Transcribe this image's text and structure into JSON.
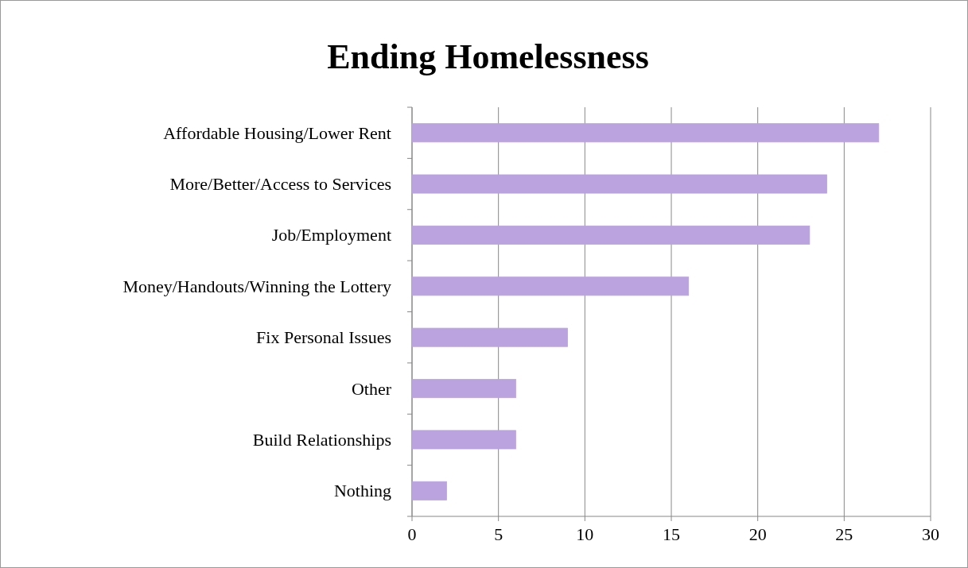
{
  "chart_data": {
    "type": "bar",
    "orientation": "horizontal",
    "title": "Ending Homelessness",
    "categories": [
      "Affordable Housing/Lower Rent",
      "More/Better/Access to Services",
      "Job/Employment",
      "Money/Handouts/Winning the Lottery",
      "Fix Personal Issues",
      "Other",
      "Build Relationships",
      "Nothing"
    ],
    "values": [
      27,
      24,
      23,
      16,
      9,
      6,
      6,
      2
    ],
    "color": "#bba3e0",
    "xlim": [
      0,
      30
    ],
    "xticks": [
      0,
      5,
      10,
      15,
      20,
      25,
      30
    ],
    "grid": "x"
  }
}
